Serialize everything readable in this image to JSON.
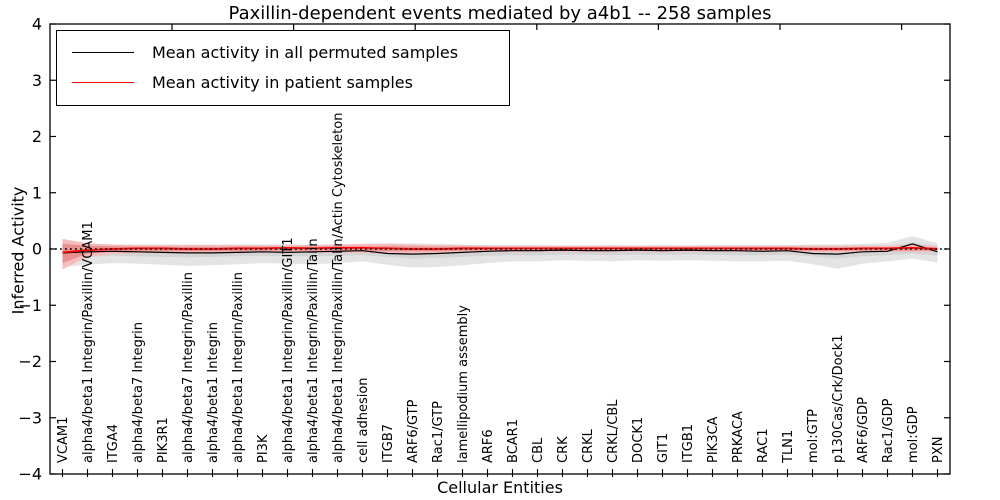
{
  "chart_data": {
    "type": "line",
    "title": "Paxillin-dependent events mediated by a4b1 -- 258 samples",
    "xlabel": "Cellular Entities",
    "ylabel": "Inferred Activity",
    "ylim": [
      -4,
      4
    ],
    "yticks": [
      4,
      3,
      2,
      1,
      0,
      -1,
      -2,
      -3,
      -4
    ],
    "ytick_labels": [
      "4",
      "3",
      "2",
      "1",
      "0",
      "−1",
      "−2",
      "−3",
      "−4"
    ],
    "grid": false,
    "legend_position": "upper left",
    "zero_line": {
      "shown": true,
      "style": "dotted",
      "color": "#000000",
      "y": 0
    },
    "categories": [
      "VCAM1",
      "alpha4/beta1 Integrin/Paxillin/VCAM1",
      "ITGA4",
      "alpha4/beta7 Integrin",
      "PIK3R1",
      "alpha4/beta7 Integrin/Paxillin",
      "alpha4/beta1 Integrin",
      "alpha4/beta1 Integrin/Paxillin",
      "PI3K",
      "alpha4/beta1 Integrin/Paxillin/GIT1",
      "alpha4/beta1 Integrin/Paxillin/Talin",
      "alpha4/beta1 Integrin/Paxillin/Talin/Actin Cytoskeleton",
      "cell adhesion",
      "ITGB7",
      "ARF6/GTP",
      "Rac1/GTP",
      "lamellipodium assembly",
      "ARF6",
      "BCAR1",
      "CBL",
      "CRK",
      "CRKL",
      "CRKL/CBL",
      "DOCK1",
      "GIT1",
      "ITGB1",
      "PIK3CA",
      "PRKACA",
      "RAC1",
      "TLN1",
      "mol:GTP",
      "p130Cas/Crk/Dock1",
      "ARF6/GDP",
      "Rac1/GDP",
      "mol:GDP",
      "PXN"
    ],
    "series": [
      {
        "name": "Mean activity in all permuted samples",
        "color": "#000000",
        "line_width": 1.2,
        "values": [
          -0.07,
          -0.05,
          -0.04,
          -0.05,
          -0.06,
          -0.07,
          -0.07,
          -0.06,
          -0.05,
          -0.06,
          -0.05,
          -0.04,
          -0.03,
          -0.08,
          -0.09,
          -0.08,
          -0.06,
          -0.04,
          -0.03,
          -0.03,
          -0.02,
          -0.03,
          -0.03,
          -0.02,
          -0.03,
          -0.02,
          -0.03,
          -0.03,
          -0.04,
          -0.03,
          -0.08,
          -0.09,
          -0.05,
          -0.04,
          0.09,
          -0.05
        ]
      },
      {
        "name": "Mean activity in patient samples",
        "color": "#ff0000",
        "line_width": 1.7,
        "values": [
          -0.06,
          -0.02,
          0.0,
          0.01,
          0.01,
          0.0,
          0.0,
          0.01,
          0.01,
          0.02,
          0.01,
          0.02,
          0.02,
          0.01,
          0.0,
          0.0,
          0.01,
          0.01,
          0.01,
          0.01,
          0.01,
          0.01,
          0.01,
          0.01,
          0.01,
          0.01,
          0.01,
          0.01,
          0.01,
          0.01,
          0.0,
          0.0,
          0.01,
          0.01,
          0.02,
          0.0
        ]
      }
    ],
    "bands": [
      {
        "name": "permuted-samples-outer-band",
        "color": "#e4e4e4",
        "upper": [
          0.12,
          0.09,
          0.08,
          0.08,
          0.08,
          0.08,
          0.08,
          0.08,
          0.08,
          0.08,
          0.08,
          0.08,
          0.09,
          0.1,
          0.1,
          0.09,
          0.08,
          0.07,
          0.07,
          0.07,
          0.06,
          0.06,
          0.07,
          0.06,
          0.07,
          0.06,
          0.07,
          0.07,
          0.07,
          0.07,
          0.08,
          0.08,
          0.09,
          0.11,
          0.23,
          0.1
        ],
        "lower": [
          -0.32,
          -0.28,
          -0.25,
          -0.26,
          -0.28,
          -0.3,
          -0.29,
          -0.27,
          -0.25,
          -0.26,
          -0.27,
          -0.25,
          -0.22,
          -0.28,
          -0.33,
          -0.32,
          -0.29,
          -0.25,
          -0.22,
          -0.22,
          -0.2,
          -0.21,
          -0.22,
          -0.2,
          -0.21,
          -0.2,
          -0.21,
          -0.22,
          -0.22,
          -0.21,
          -0.27,
          -0.35,
          -0.26,
          -0.22,
          -0.17,
          -0.24
        ]
      },
      {
        "name": "permuted-samples-inner-band",
        "color": "#d4d4d4",
        "upper": [
          0.05,
          0.04,
          0.04,
          0.04,
          0.04,
          0.04,
          0.04,
          0.04,
          0.04,
          0.04,
          0.04,
          0.04,
          0.04,
          0.05,
          0.05,
          0.04,
          0.04,
          0.03,
          0.03,
          0.03,
          0.03,
          0.03,
          0.03,
          0.03,
          0.03,
          0.03,
          0.03,
          0.03,
          0.03,
          0.03,
          0.04,
          0.04,
          0.04,
          0.05,
          0.12,
          0.05
        ],
        "lower": [
          -0.16,
          -0.14,
          -0.12,
          -0.13,
          -0.14,
          -0.15,
          -0.14,
          -0.13,
          -0.12,
          -0.13,
          -0.13,
          -0.12,
          -0.11,
          -0.14,
          -0.17,
          -0.16,
          -0.14,
          -0.12,
          -0.11,
          -0.11,
          -0.1,
          -0.1,
          -0.11,
          -0.1,
          -0.1,
          -0.1,
          -0.1,
          -0.11,
          -0.11,
          -0.1,
          -0.13,
          -0.17,
          -0.13,
          -0.11,
          -0.08,
          -0.12
        ]
      },
      {
        "name": "patient-samples-outer-band",
        "color": "#f4bcbc",
        "upper": [
          0.18,
          0.1,
          0.08,
          0.07,
          0.07,
          0.07,
          0.07,
          0.07,
          0.07,
          0.07,
          0.07,
          0.08,
          0.09,
          0.09,
          0.08,
          0.07,
          0.07,
          0.06,
          0.06,
          0.06,
          0.06,
          0.06,
          0.06,
          0.06,
          0.06,
          0.06,
          0.06,
          0.06,
          0.06,
          0.06,
          0.06,
          0.06,
          0.06,
          0.06,
          0.07,
          0.06
        ],
        "lower": [
          -0.36,
          -0.14,
          -0.09,
          -0.07,
          -0.07,
          -0.07,
          -0.07,
          -0.07,
          -0.06,
          -0.06,
          -0.06,
          -0.07,
          -0.07,
          -0.08,
          -0.08,
          -0.07,
          -0.06,
          -0.05,
          -0.05,
          -0.05,
          -0.05,
          -0.05,
          -0.05,
          -0.05,
          -0.05,
          -0.05,
          -0.05,
          -0.05,
          -0.05,
          -0.05,
          -0.05,
          -0.06,
          -0.05,
          -0.05,
          -0.05,
          -0.05
        ]
      },
      {
        "name": "patient-samples-inner-band",
        "color": "#e89090",
        "upper": [
          0.09,
          0.06,
          0.05,
          0.04,
          0.04,
          0.04,
          0.04,
          0.04,
          0.04,
          0.04,
          0.04,
          0.05,
          0.05,
          0.05,
          0.05,
          0.04,
          0.04,
          0.03,
          0.03,
          0.03,
          0.03,
          0.03,
          0.03,
          0.03,
          0.03,
          0.03,
          0.03,
          0.03,
          0.03,
          0.03,
          0.03,
          0.03,
          0.03,
          0.03,
          0.04,
          0.03
        ],
        "lower": [
          -0.25,
          -0.08,
          -0.05,
          -0.04,
          -0.04,
          -0.04,
          -0.04,
          -0.04,
          -0.03,
          -0.03,
          -0.03,
          -0.04,
          -0.04,
          -0.04,
          -0.04,
          -0.04,
          -0.03,
          -0.03,
          -0.03,
          -0.03,
          -0.03,
          -0.03,
          -0.03,
          -0.03,
          -0.03,
          -0.03,
          -0.03,
          -0.03,
          -0.03,
          -0.03,
          -0.03,
          -0.03,
          -0.03,
          -0.03,
          -0.03,
          -0.03
        ]
      }
    ]
  },
  "colors": {
    "spine": "#000000",
    "background": "#ffffff",
    "permuted_line": "#000000",
    "patient_line": "#ff0000"
  }
}
